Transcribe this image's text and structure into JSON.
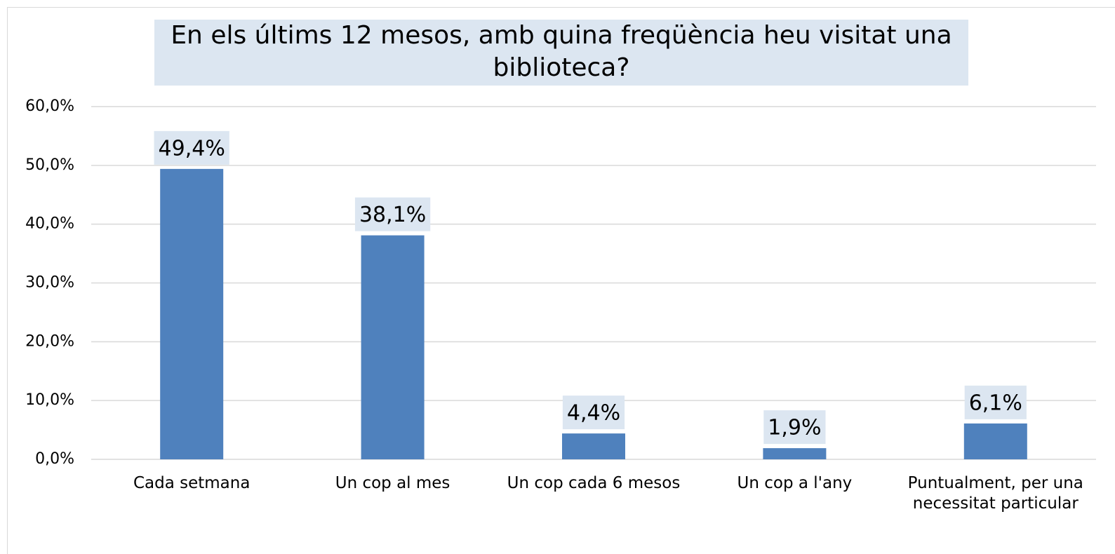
{
  "chart_data": {
    "type": "bar",
    "title": "En els últims 12 mesos, amb quina freqüència heu visitat una biblioteca?",
    "categories": [
      "Cada setmana",
      "Un cop al mes",
      "Un cop cada 6 mesos",
      "Un cop a l'any",
      "Puntualment, per una necessitat particular"
    ],
    "values": [
      49.4,
      38.1,
      4.4,
      1.9,
      6.1
    ],
    "value_labels": [
      "49,4%",
      "38,1%",
      "4,4%",
      "1,9%",
      "6,1%"
    ],
    "color": "#4f81bd",
    "ylim": [
      0,
      60
    ],
    "yticks": [
      {
        "value": 0,
        "label": "0,0%"
      },
      {
        "value": 10,
        "label": "10,0%"
      },
      {
        "value": 20,
        "label": "20,0%"
      },
      {
        "value": 30,
        "label": "30,0%"
      },
      {
        "value": 40,
        "label": "40,0%"
      },
      {
        "value": 50,
        "label": "50,0%"
      },
      {
        "value": 60,
        "label": "60,0%"
      }
    ],
    "grid": true
  }
}
